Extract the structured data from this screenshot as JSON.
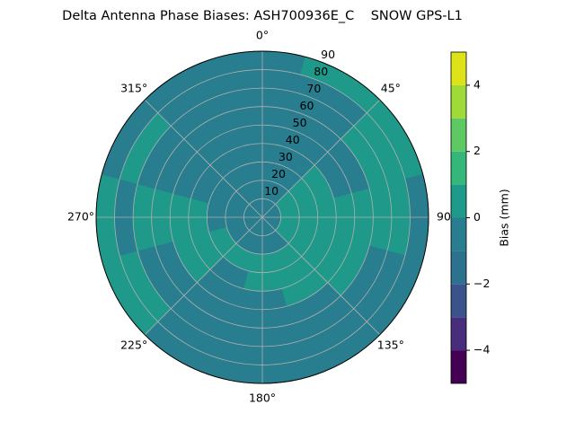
{
  "chart_data": {
    "type": "polar_contour",
    "title": "Delta Antenna Phase Biases: ASH700936E_C    SNOW GPS-L1",
    "rlim": [
      0,
      90
    ],
    "rticks": [
      10,
      20,
      30,
      40,
      50,
      60,
      70,
      80,
      90
    ],
    "theta_ticks": [
      {
        "value": 0,
        "label": "0°"
      },
      {
        "value": 45,
        "label": "45°"
      },
      {
        "value": 90,
        "label": "90"
      },
      {
        "value": 135,
        "label": "135°"
      },
      {
        "value": 180,
        "label": "180°"
      },
      {
        "value": 225,
        "label": "225°"
      },
      {
        "value": 270,
        "label": "270°"
      },
      {
        "value": 315,
        "label": "315°"
      }
    ],
    "azimuth_bins": [
      -15,
      15,
      45,
      75,
      105,
      135,
      165,
      195,
      225,
      255,
      285,
      315,
      345
    ],
    "radius_bins": [
      0,
      10,
      20,
      30,
      40,
      50,
      60,
      70,
      80,
      90
    ],
    "values": [
      [
        -0.5,
        -0.5,
        -0.5,
        -0.5,
        -0.5,
        -0.5,
        -0.5,
        -0.5,
        -0.5
      ],
      [
        -0.5,
        -0.5,
        -0.5,
        -0.5,
        -0.5,
        -0.5,
        -0.5,
        -0.5,
        0.5
      ],
      [
        -0.5,
        0.5,
        0.5,
        0.5,
        -0.5,
        -0.5,
        0.5,
        0.5,
        0.5
      ],
      [
        -0.5,
        0.5,
        0.5,
        0.5,
        0.5,
        0.5,
        0.5,
        0.5,
        -0.5
      ],
      [
        -0.5,
        0.5,
        0.5,
        0.5,
        0.5,
        0.5,
        -0.5,
        -0.5,
        -0.5
      ],
      [
        -0.5,
        -0.5,
        0.5,
        0.5,
        0.5,
        -0.5,
        -0.5,
        -0.5,
        -0.5
      ],
      [
        -0.5,
        -0.5,
        0.5,
        0.5,
        -0.5,
        -0.5,
        -0.5,
        -0.5,
        -0.5
      ],
      [
        -0.5,
        -0.5,
        0.5,
        -0.5,
        -0.5,
        -0.5,
        -0.5,
        -0.5,
        -0.5
      ],
      [
        -0.5,
        -0.5,
        0.5,
        0.5,
        0.5,
        -0.5,
        -0.5,
        0.5,
        0.5
      ],
      [
        -0.5,
        -0.5,
        -0.5,
        0.5,
        0.5,
        0.5,
        0.5,
        -0.5,
        0.5
      ],
      [
        -0.5,
        -0.5,
        -0.5,
        -0.5,
        -0.5,
        -0.5,
        -0.5,
        0.5,
        -0.5
      ],
      [
        -0.5,
        -0.5,
        -0.5,
        -0.5,
        -0.5,
        -0.5,
        -0.5,
        -0.5,
        -0.5
      ]
    ],
    "colorbar": {
      "label": "Bias (mm)",
      "clim": [
        -5,
        5
      ],
      "levels": [
        -5,
        -4,
        -3,
        -2,
        -1,
        0,
        1,
        2,
        3,
        4,
        5
      ],
      "colors": [
        "#440154",
        "#472d7b",
        "#3b528b",
        "#2c728e",
        "#287d8e",
        "#1f9a8a",
        "#35b779",
        "#5ec962",
        "#a0da39",
        "#dde318"
      ],
      "ticks": [
        {
          "value": -4,
          "label": "−4"
        },
        {
          "value": -2,
          "label": "−2"
        },
        0,
        2,
        4
      ]
    }
  }
}
